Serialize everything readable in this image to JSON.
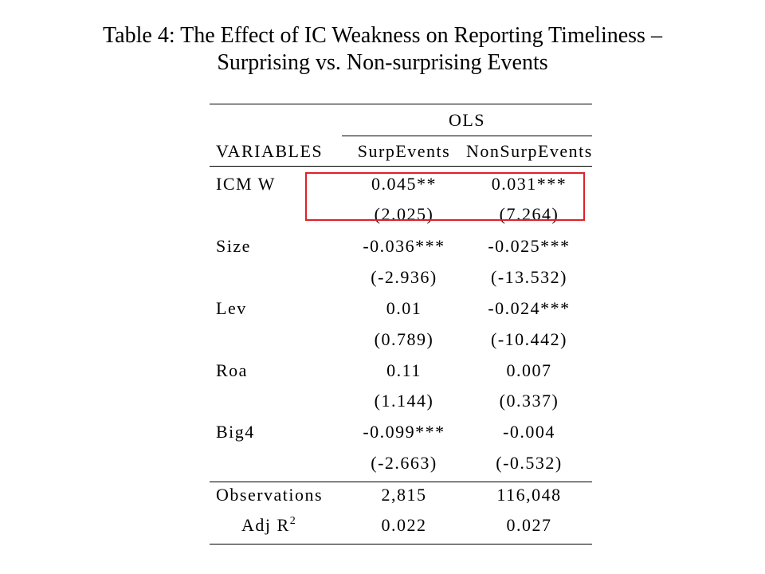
{
  "title": {
    "line1": "Table 4: The Effect of IC Weakness on Reporting Timeliness –",
    "line2": "Surprising vs. Non-surprising Events"
  },
  "table": {
    "group_header": "OLS",
    "columns": [
      "VARIABLES",
      "SurpEvents",
      "NonSurpEvents"
    ],
    "rows": [
      {
        "variable": "ICM W",
        "surp": "0.045**",
        "nonsurp": "0.031***",
        "surp_t": "(2.025)",
        "nonsurp_t": "(7.264)"
      },
      {
        "variable": "Size",
        "surp": "-0.036***",
        "nonsurp": "-0.025***",
        "surp_t": "(-2.936)",
        "nonsurp_t": "(-13.532)"
      },
      {
        "variable": "Lev",
        "surp": "0.01",
        "nonsurp": "-0.024***",
        "surp_t": "(0.789)",
        "nonsurp_t": "(-10.442)"
      },
      {
        "variable": "Roa",
        "surp": "0.11",
        "nonsurp": "0.007",
        "surp_t": "(1.144)",
        "nonsurp_t": "(0.337)"
      },
      {
        "variable": "Big4",
        "surp": "-0.099***",
        "nonsurp": "-0.004",
        "surp_t": "(-2.663)",
        "nonsurp_t": "(-0.532)"
      }
    ],
    "footer": [
      {
        "label": "Observations",
        "surp": "2,815",
        "nonsurp": "116,048"
      },
      {
        "label": "Adj R",
        "superscript": "2",
        "surp": "0.022",
        "nonsurp": "0.027"
      }
    ],
    "highlight_color": "#e0202a"
  }
}
